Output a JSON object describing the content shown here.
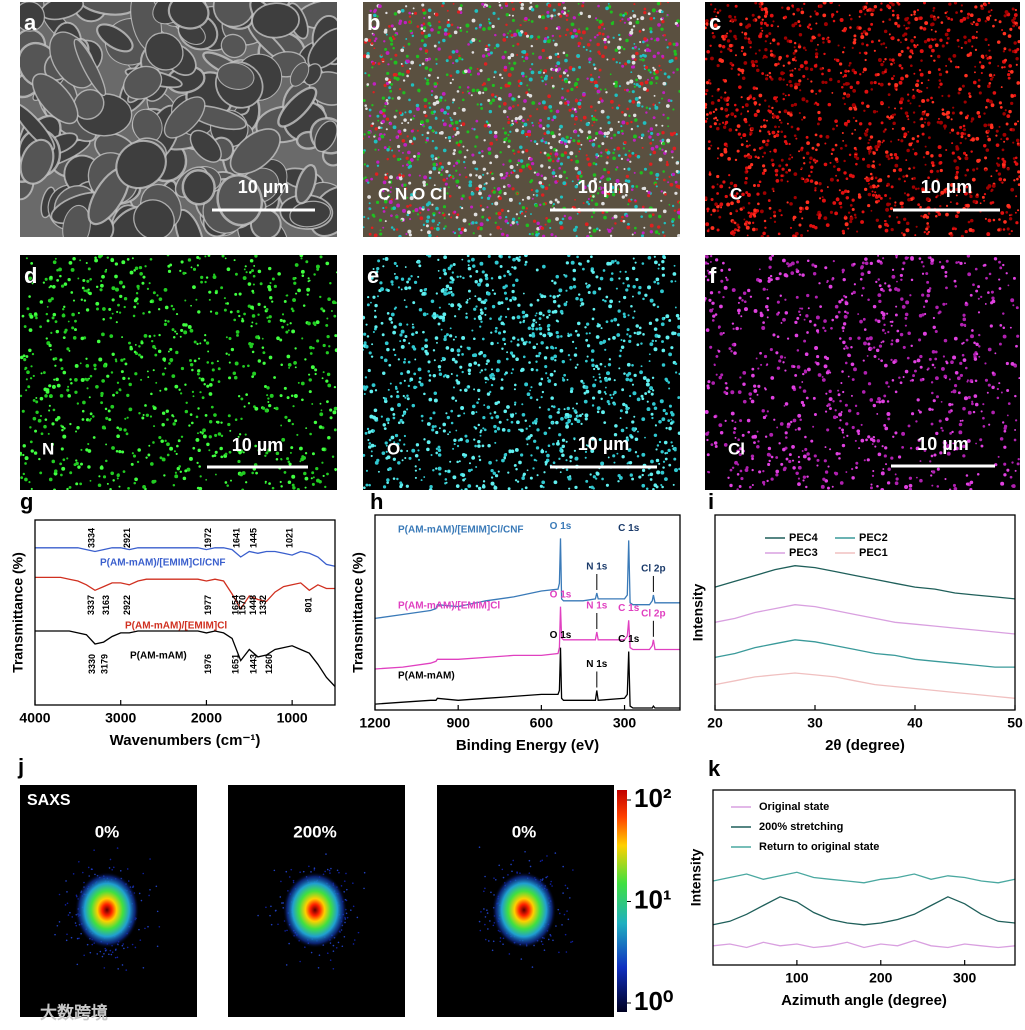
{
  "panels": [
    {
      "letter": "a",
      "scale_bar": "10 µm"
    },
    {
      "letter": "b",
      "element": "C N O Cl",
      "scale_bar": "10 µm"
    },
    {
      "letter": "c",
      "element": "C",
      "scale_bar": "10 µm"
    },
    {
      "letter": "d",
      "element": "N",
      "scale_bar": "10 µm"
    },
    {
      "letter": "e",
      "element": "O",
      "scale_bar": "10 µm"
    },
    {
      "letter": "f",
      "element": "Cl",
      "scale_bar": "10 µm"
    }
  ],
  "chart_data": [
    {
      "type": "line",
      "panel": "g",
      "x_label": "Wavenumbers (cm⁻¹)",
      "y_label": "Transmittance (%)",
      "xlim": [
        4000,
        500
      ],
      "xticks": [
        4000,
        3000,
        2000,
        1000
      ],
      "ylim": [
        0,
        10
      ],
      "x": [
        4000,
        3900,
        3800,
        3700,
        3600,
        3500,
        3400,
        3300,
        3200,
        3100,
        3000,
        2900,
        2800,
        2700,
        2600,
        2500,
        2400,
        2300,
        2200,
        2100,
        2000,
        1900,
        1800,
        1700,
        1600,
        1500,
        1400,
        1300,
        1200,
        1100,
        1000,
        900,
        800,
        700,
        600,
        500
      ],
      "series": [
        {
          "name": "P(AM-mAM)/[EMIM]Cl/CNF",
          "color": "#3a5fcd",
          "values": [
            8.5,
            8.5,
            8.5,
            8.5,
            8.5,
            8.5,
            8.4,
            8.3,
            8.4,
            8.5,
            8.5,
            8.4,
            8.5,
            8.5,
            8.5,
            8.5,
            8.5,
            8.5,
            8.5,
            8.5,
            8.4,
            8.5,
            8.5,
            8.4,
            8.0,
            8.3,
            8.2,
            8.3,
            8.3,
            8.2,
            8.1,
            8.3,
            8.2,
            8.0,
            7.6,
            7.5
          ],
          "peaks": [
            3334,
            2921,
            1972,
            1641,
            1445,
            1021
          ]
        },
        {
          "name": "P(AM-mAM)/[EMIM]Cl",
          "color": "#d03020",
          "values": [
            6.9,
            6.9,
            6.9,
            6.9,
            6.8,
            6.7,
            6.5,
            6.2,
            6.4,
            6.6,
            6.6,
            6.5,
            6.7,
            6.8,
            6.8,
            6.8,
            6.8,
            6.8,
            6.8,
            6.8,
            6.7,
            6.8,
            6.7,
            6.0,
            5.2,
            5.9,
            5.7,
            5.6,
            6.1,
            6.4,
            6.5,
            6.6,
            6.2,
            6.5,
            6.3,
            6.3
          ],
          "peaks": [
            3337,
            3163,
            2922,
            1977,
            1654,
            1570,
            1448,
            1332,
            801
          ]
        },
        {
          "name": "P(AM-mAM)",
          "color": "#000000",
          "values": [
            4.0,
            4.0,
            4.0,
            4.0,
            4.0,
            3.9,
            3.8,
            3.3,
            3.4,
            3.7,
            3.9,
            3.9,
            4.0,
            4.0,
            4.0,
            4.0,
            4.0,
            4.0,
            4.0,
            4.0,
            3.9,
            4.0,
            3.9,
            3.6,
            2.4,
            3.0,
            2.6,
            2.7,
            3.0,
            3.1,
            3.2,
            3.0,
            2.8,
            2.2,
            1.5,
            1.0
          ],
          "peaks": [
            3330,
            3179,
            1976,
            1651,
            1443,
            1260
          ]
        }
      ]
    },
    {
      "type": "line",
      "panel": "h",
      "x_label": "Binding Energy (eV)",
      "y_label": "Transmittance (%)",
      "xlim": [
        1200,
        100
      ],
      "xticks": [
        1200,
        900,
        600,
        300
      ],
      "ylim": [
        0,
        10
      ],
      "x": [
        1200,
        1100,
        1000,
        980,
        975,
        900,
        800,
        700,
        600,
        540,
        535,
        531,
        527,
        520,
        450,
        405,
        400,
        395,
        300,
        290,
        285,
        280,
        270,
        210,
        200,
        196,
        190,
        150,
        100
      ],
      "series": [
        {
          "name": "P(AM-mAM)/[EMIM]Cl/CNF",
          "color": "#3a7ab8",
          "values": [
            4.7,
            4.9,
            5.1,
            5.2,
            5.4,
            5.3,
            5.6,
            5.8,
            6.1,
            6.2,
            6.5,
            8.8,
            5.7,
            5.6,
            5.6,
            5.7,
            6.0,
            5.7,
            5.7,
            5.9,
            8.7,
            5.5,
            5.4,
            5.4,
            5.6,
            5.9,
            5.5,
            5.5,
            5.5
          ],
          "annotations": [
            {
              "text": "O 1s",
              "x": 531
            },
            {
              "text": "N 1s",
              "x": 400
            },
            {
              "text": "C 1s",
              "x": 285
            },
            {
              "text": "Cl 2p",
              "x": 196
            }
          ]
        },
        {
          "name": "P(AM-mAM)/[EMIM]Cl",
          "color": "#e040c0",
          "values": [
            2.1,
            2.2,
            2.4,
            2.5,
            2.6,
            2.6,
            2.7,
            2.8,
            2.8,
            2.9,
            3.2,
            5.3,
            3.7,
            3.6,
            3.6,
            3.6,
            4.0,
            3.6,
            3.6,
            3.8,
            4.6,
            3.2,
            3.1,
            3.1,
            3.3,
            3.6,
            3.1,
            3.1,
            3.1
          ],
          "annotations": [
            {
              "text": "O 1s",
              "x": 531
            },
            {
              "text": "N 1s",
              "x": 400
            },
            {
              "text": "C 1s",
              "x": 285
            },
            {
              "text": "Cl 2p",
              "x": 196
            }
          ]
        },
        {
          "name": "P(AM-mAM)",
          "color": "#000000",
          "values": [
            0.3,
            0.4,
            0.5,
            0.5,
            0.6,
            0.5,
            0.6,
            0.7,
            0.8,
            0.8,
            1.0,
            3.2,
            0.6,
            0.5,
            0.5,
            0.5,
            1.0,
            0.5,
            0.6,
            0.8,
            3.0,
            0.2,
            0.1,
            0.1,
            0.1,
            0.2,
            0.1,
            0.1,
            0.1
          ],
          "annotations": [
            {
              "text": "O 1s",
              "x": 531
            },
            {
              "text": "N 1s",
              "x": 400
            },
            {
              "text": "C 1s",
              "x": 285
            }
          ]
        }
      ]
    },
    {
      "type": "line",
      "panel": "i",
      "x_label": "2θ (degree)",
      "y_label": "Intensity",
      "xlim": [
        20,
        50
      ],
      "xticks": [
        20,
        30,
        40,
        50
      ],
      "ylim": [
        0,
        10
      ],
      "legend": "top",
      "x": [
        20,
        22,
        24,
        26,
        28,
        30,
        32,
        34,
        36,
        38,
        40,
        42,
        44,
        46,
        48,
        50
      ],
      "series": [
        {
          "name": "PEC4",
          "color": "#1f5f5a",
          "values": [
            6.3,
            6.6,
            6.9,
            7.2,
            7.4,
            7.3,
            7.1,
            6.9,
            6.7,
            6.5,
            6.3,
            6.2,
            6.0,
            5.9,
            5.8,
            5.7
          ]
        },
        {
          "name": "PEC2",
          "color": "#3a9a9a",
          "values": [
            2.7,
            2.9,
            3.2,
            3.4,
            3.6,
            3.5,
            3.3,
            3.1,
            2.9,
            2.8,
            2.6,
            2.5,
            2.4,
            2.3,
            2.2,
            2.2
          ]
        },
        {
          "name": "PEC3",
          "color": "#d9a0e0",
          "values": [
            4.5,
            4.7,
            5.0,
            5.2,
            5.4,
            5.3,
            5.1,
            4.9,
            4.7,
            4.5,
            4.4,
            4.3,
            4.2,
            4.1,
            4.0,
            3.9
          ]
        },
        {
          "name": "PEC1",
          "color": "#f0c0c0",
          "values": [
            1.3,
            1.5,
            1.7,
            1.8,
            1.9,
            1.8,
            1.7,
            1.5,
            1.3,
            1.2,
            1.1,
            1.0,
            0.9,
            0.8,
            0.7,
            0.6
          ]
        }
      ]
    },
    {
      "type": "line",
      "panel": "k",
      "x_label": "Azimuth angle (degree)",
      "y_label": "Intensity",
      "xlim": [
        0,
        360
      ],
      "xticks": [
        100,
        200,
        300
      ],
      "ylim": [
        0,
        10
      ],
      "legend": "top-left",
      "x": [
        0,
        20,
        40,
        60,
        80,
        100,
        120,
        140,
        160,
        180,
        200,
        220,
        240,
        260,
        280,
        300,
        320,
        340,
        360
      ],
      "series": [
        {
          "name": "Original state",
          "color": "#d9a0e0",
          "values": [
            1.1,
            1.2,
            1.0,
            1.3,
            1.1,
            1.2,
            1.0,
            1.1,
            1.3,
            1.0,
            1.2,
            1.1,
            1.4,
            1.1,
            1.0,
            1.2,
            1.1,
            1.0,
            1.1
          ]
        },
        {
          "name": "200% stretching",
          "color": "#1f5f5a",
          "values": [
            2.3,
            2.5,
            2.9,
            3.4,
            3.9,
            3.6,
            3.0,
            2.6,
            2.4,
            2.3,
            2.4,
            2.6,
            2.9,
            3.4,
            3.9,
            3.5,
            2.9,
            2.5,
            2.4
          ]
        },
        {
          "name": "Return to original state",
          "color": "#4aa8a0",
          "values": [
            4.8,
            5.0,
            5.2,
            4.9,
            5.1,
            5.3,
            5.0,
            4.9,
            4.8,
            4.7,
            4.9,
            5.0,
            5.2,
            4.9,
            5.1,
            5.0,
            4.8,
            4.7,
            4.9
          ]
        }
      ]
    }
  ],
  "saxs": {
    "letter": "j",
    "title": "SAXS",
    "images": [
      "0%",
      "200%",
      "0%"
    ],
    "colorbar": {
      "scale": "log",
      "lim": [
        1,
        100
      ],
      "ticks": [
        {
          "value": 100,
          "label": "10²"
        },
        {
          "value": 10,
          "label": "10¹"
        },
        {
          "value": 1,
          "label": "10⁰"
        }
      ]
    }
  },
  "watermark": "大数跨境"
}
